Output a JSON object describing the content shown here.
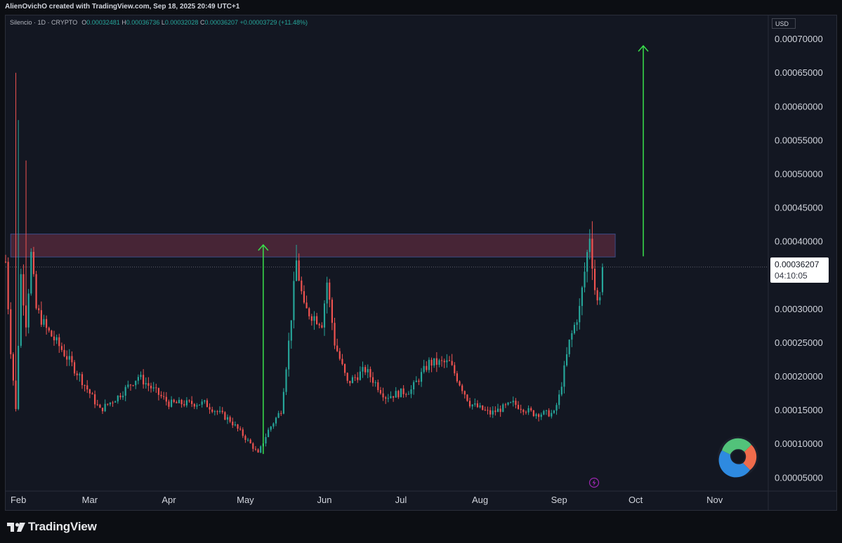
{
  "header": {
    "credit": "AlienOvichO created with TradingView.com, Sep 18, 2025 20:49 UTC+1"
  },
  "legend": {
    "symbol": "Silencio · 1D · CRYPTO",
    "o_label": "O",
    "o_value": "0.00032481",
    "h_label": "H",
    "h_value": "0.00036736",
    "l_label": "L",
    "l_value": "0.00032028",
    "c_label": "C",
    "c_value": "0.00036207",
    "change": "+0.00003729 (+11.48%)"
  },
  "price_scale": {
    "currency": "USD",
    "last_price": "0.00036207",
    "countdown": "04:10:05"
  },
  "footer": {
    "brand": "TradingView"
  },
  "colors": {
    "up": "#26a69a",
    "down": "#ef5350",
    "arrow": "#39e14b",
    "zone_fill": "#5a2b3d",
    "zone_border": "#3d4b86"
  },
  "icons": {
    "brand": "tradingview-logo-icon",
    "badge": "creator-logo-icon",
    "flash": "lightning-icon"
  },
  "chart_data": {
    "type": "candlestick",
    "title": "Silencio · 1D · CRYPTO",
    "y_axis": {
      "ticks": [
        "0.00070000",
        "0.00065000",
        "0.00060000",
        "0.00055000",
        "0.00050000",
        "0.00045000",
        "0.00040000",
        "0.00030000",
        "0.00025000",
        "0.00020000",
        "0.00015000",
        "0.00010000",
        "0.00005000"
      ],
      "ylim": [
        3e-05,
        0.000735
      ]
    },
    "x_axis": {
      "ticks": [
        {
          "label": "Feb",
          "date": "2025-02-01"
        },
        {
          "label": "Mar",
          "date": "2025-03-01"
        },
        {
          "label": "Apr",
          "date": "2025-04-01"
        },
        {
          "label": "May",
          "date": "2025-05-01"
        },
        {
          "label": "Jun",
          "date": "2025-06-01"
        },
        {
          "label": "Jul",
          "date": "2025-07-01"
        },
        {
          "label": "Aug",
          "date": "2025-08-01"
        },
        {
          "label": "Sep",
          "date": "2025-09-01"
        },
        {
          "label": "Oct",
          "date": "2025-10-01"
        },
        {
          "label": "Nov",
          "date": "2025-11-01"
        }
      ],
      "xlim": [
        "2025-01-27",
        "2025-11-22"
      ]
    },
    "anchors": [
      {
        "date": "2025-01-27",
        "close": 0.00037
      },
      {
        "date": "2025-01-29",
        "close": 0.00024
      },
      {
        "date": "2025-01-31",
        "close": 0.00015
      },
      {
        "date": "2025-02-02",
        "close": 0.00035
      },
      {
        "date": "2025-02-04",
        "close": 0.00028
      },
      {
        "date": "2025-02-06",
        "close": 0.00038
      },
      {
        "date": "2025-02-08",
        "close": 0.0003
      },
      {
        "date": "2025-02-12",
        "close": 0.00027
      },
      {
        "date": "2025-02-18",
        "close": 0.00024
      },
      {
        "date": "2025-02-25",
        "close": 0.0002
      },
      {
        "date": "2025-03-05",
        "close": 0.00015
      },
      {
        "date": "2025-03-12",
        "close": 0.00017
      },
      {
        "date": "2025-03-20",
        "close": 0.0002
      },
      {
        "date": "2025-04-01",
        "close": 0.00016
      },
      {
        "date": "2025-04-15",
        "close": 0.00016
      },
      {
        "date": "2025-04-25",
        "close": 0.000135
      },
      {
        "date": "2025-05-03",
        "close": 0.0001
      },
      {
        "date": "2025-05-06",
        "close": 8.5e-05
      },
      {
        "date": "2025-05-10",
        "close": 0.00012
      },
      {
        "date": "2025-05-15",
        "close": 0.00015
      },
      {
        "date": "2025-05-18",
        "close": 0.00025
      },
      {
        "date": "2025-05-21",
        "close": 0.00037
      },
      {
        "date": "2025-05-24",
        "close": 0.0003
      },
      {
        "date": "2025-05-31",
        "close": 0.00028
      },
      {
        "date": "2025-06-02",
        "close": 0.00034
      },
      {
        "date": "2025-06-05",
        "close": 0.00025
      },
      {
        "date": "2025-06-10",
        "close": 0.00019
      },
      {
        "date": "2025-06-17",
        "close": 0.00021
      },
      {
        "date": "2025-06-25",
        "close": 0.00017
      },
      {
        "date": "2025-07-05",
        "close": 0.00018
      },
      {
        "date": "2025-07-12",
        "close": 0.00022
      },
      {
        "date": "2025-07-20",
        "close": 0.00022
      },
      {
        "date": "2025-07-28",
        "close": 0.00016
      },
      {
        "date": "2025-08-05",
        "close": 0.000145
      },
      {
        "date": "2025-08-14",
        "close": 0.00016
      },
      {
        "date": "2025-08-22",
        "close": 0.000145
      },
      {
        "date": "2025-08-30",
        "close": 0.000145
      },
      {
        "date": "2025-09-01",
        "close": 0.00017
      },
      {
        "date": "2025-09-05",
        "close": 0.00025
      },
      {
        "date": "2025-09-09",
        "close": 0.0003
      },
      {
        "date": "2025-09-13",
        "close": 0.00041
      },
      {
        "date": "2025-09-15",
        "close": 0.00033
      },
      {
        "date": "2025-09-16",
        "close": 0.00031
      },
      {
        "date": "2025-09-17",
        "close": 0.00032481
      },
      {
        "date": "2025-09-18",
        "open": 0.00032481,
        "high": 0.00036736,
        "low": 0.00032028,
        "close": 0.00036207
      }
    ],
    "spikes": [
      {
        "date": "2025-01-31",
        "high": 0.00065
      },
      {
        "date": "2025-02-01",
        "high": 0.00058
      },
      {
        "date": "2025-02-04",
        "high": 0.00052
      },
      {
        "date": "2025-05-21",
        "high": 0.000395
      },
      {
        "date": "2025-09-14",
        "high": 0.00043
      }
    ],
    "resistance_zone": {
      "from": "2025-01-29",
      "to": "2025-09-23",
      "low": 0.000377,
      "high": 0.000411
    },
    "annotations": [
      {
        "type": "arrow",
        "date": "2025-05-08",
        "from": 8.5e-05,
        "to": 0.000395
      },
      {
        "type": "arrow",
        "date": "2025-10-04",
        "from": 0.000378,
        "to": 0.00069
      }
    ],
    "last_price_line": 0.00036207
  }
}
